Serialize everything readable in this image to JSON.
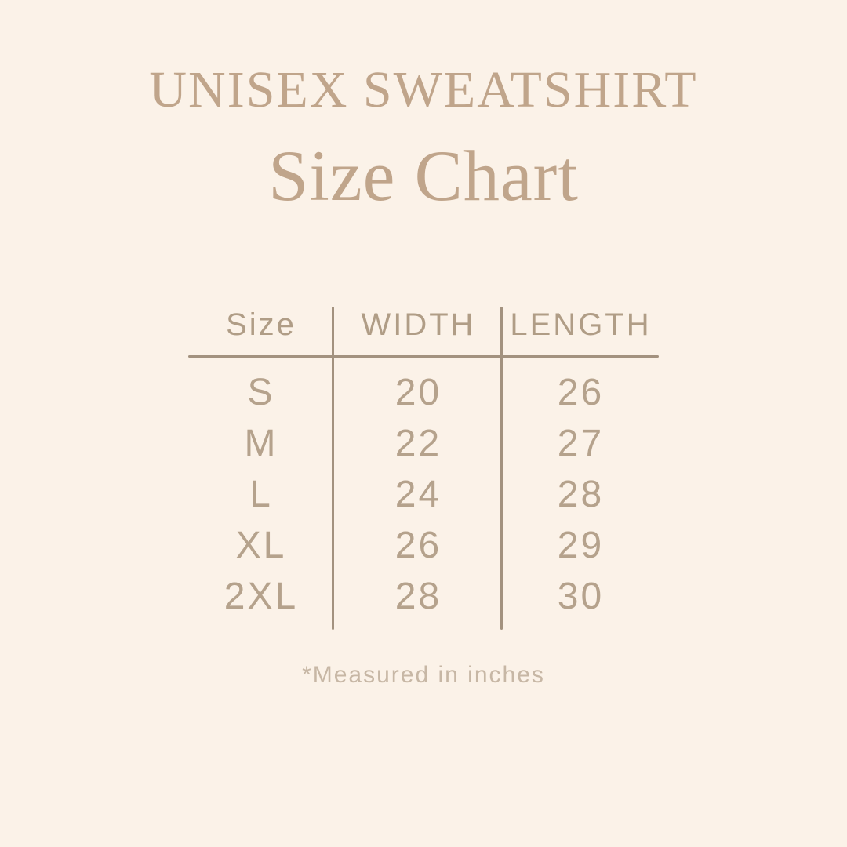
{
  "header": {
    "product_title": "UNISEX SWEATSHIRT",
    "page_title": "Size Chart"
  },
  "table": {
    "columns": [
      "Size",
      "WIDTH",
      "LENGTH"
    ],
    "rows": [
      {
        "size": "S",
        "width": "20",
        "length": "26"
      },
      {
        "size": "M",
        "width": "22",
        "length": "27"
      },
      {
        "size": "L",
        "width": "24",
        "length": "28"
      },
      {
        "size": "XL",
        "width": "26",
        "length": "29"
      },
      {
        "size": "2XL",
        "width": "28",
        "length": "30"
      }
    ]
  },
  "footnote": {
    "text": "*Measured in inches"
  },
  "colors": {
    "background": "#fbf2e8",
    "title": "#c0a58b",
    "table_text": "#b5a28c",
    "header_text": "#b09d86",
    "rule": "#a3927f",
    "footnote": "#c7b7a5"
  },
  "chart_data": {
    "type": "table",
    "title": "UNISEX SWEATSHIRT Size Chart",
    "columns": [
      "Size",
      "WIDTH",
      "LENGTH"
    ],
    "rows": [
      [
        "S",
        20,
        26
      ],
      [
        "M",
        22,
        27
      ],
      [
        "L",
        24,
        28
      ],
      [
        "XL",
        26,
        29
      ],
      [
        "2XL",
        28,
        30
      ]
    ],
    "units": "inches",
    "note": "*Measured in inches"
  }
}
